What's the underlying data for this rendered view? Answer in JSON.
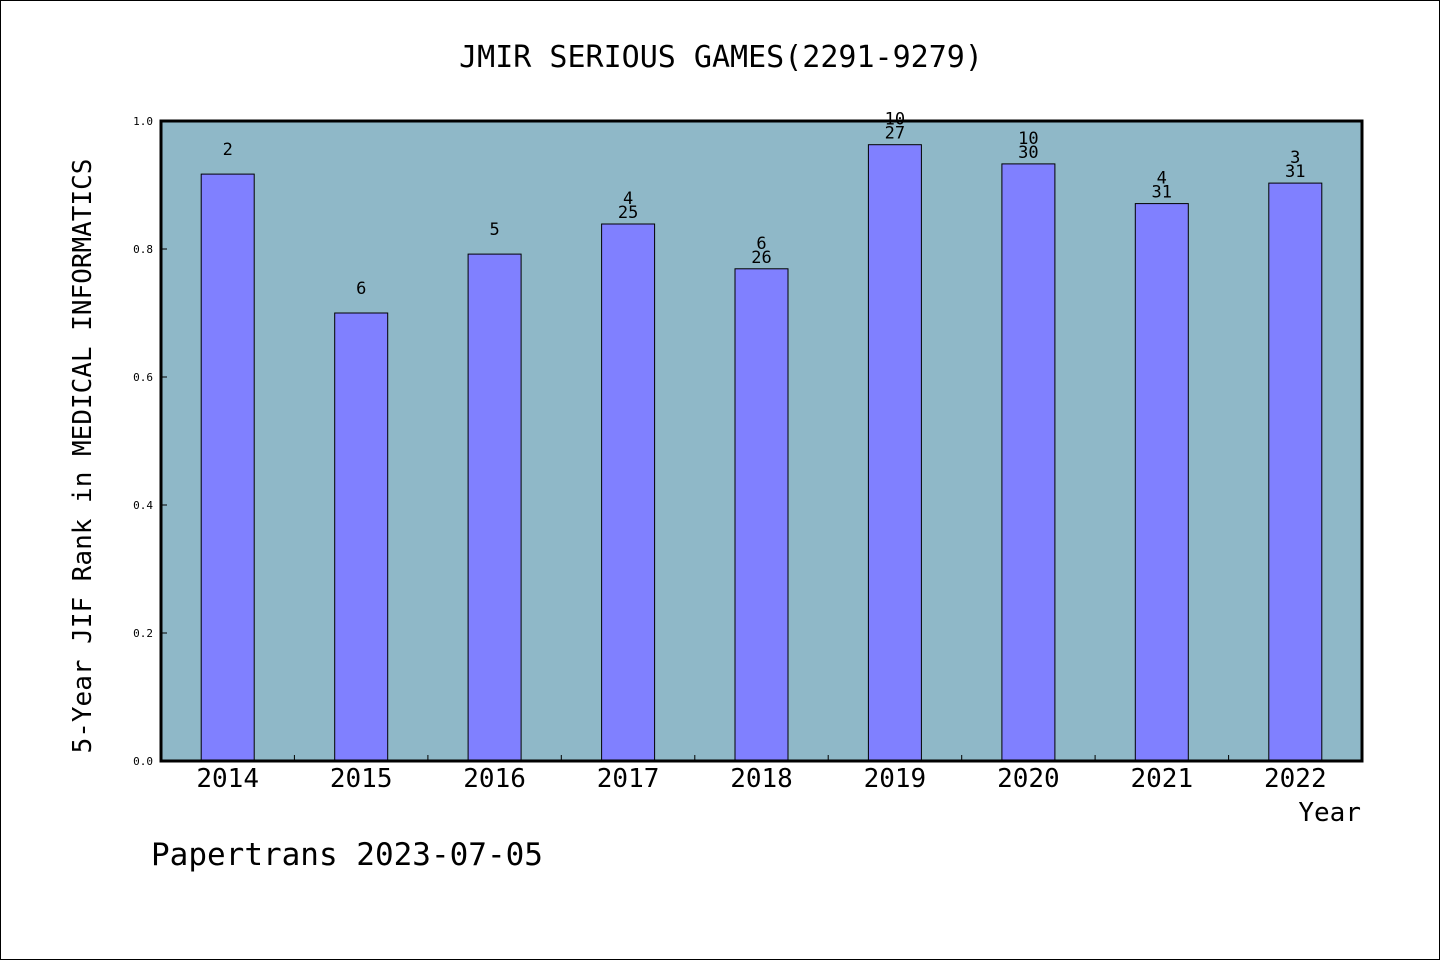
{
  "chart_data": {
    "type": "bar",
    "title": "JMIR SERIOUS GAMES(2291-9279)",
    "xlabel": "Year",
    "ylabel": "5-Year JIF Rank in MEDICAL INFORMATICS",
    "categories": [
      "2014",
      "2015",
      "2016",
      "2017",
      "2018",
      "2019",
      "2020",
      "2021",
      "2022"
    ],
    "values": [
      0.917,
      0.7,
      0.792,
      0.839,
      0.769,
      0.963,
      0.933,
      0.871,
      0.903
    ],
    "labels_top": [
      "",
      "",
      "",
      "4",
      "6",
      "10",
      "10",
      "4",
      "3"
    ],
    "labels_bottom": [
      "2",
      "6",
      "5",
      "25",
      "26",
      "27",
      "30",
      "31",
      "31"
    ],
    "ylim": [
      0,
      1.0
    ],
    "yticks": [
      "0.0",
      "0.2",
      "0.4",
      "0.6",
      "0.8",
      "1.0"
    ],
    "grid": false,
    "colors": {
      "bar": "#8080ff",
      "plot_bg": "#8fb8c8"
    }
  },
  "footer": "Papertrans 2023-07-05"
}
